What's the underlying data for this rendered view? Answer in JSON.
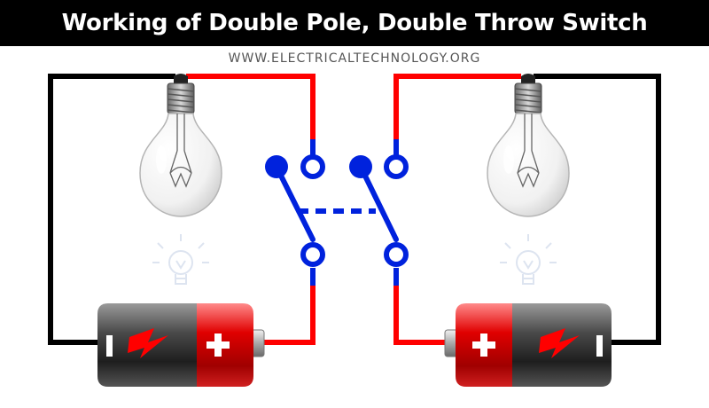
{
  "title": "Working of Double Pole, Double Throw Switch",
  "website": "WWW.ELECTRICALTECHNOLOGY.ORG",
  "colors": {
    "background": "#ffffff",
    "title_bar": "#000000",
    "title_text": "#ffffff",
    "wire_positive": "#ff0000",
    "wire_negative": "#000000",
    "switch": "#0022dd",
    "battery_body_dark": "#333333",
    "battery_body_red": "#e10000"
  },
  "icons": [
    "bulb-icon-left",
    "bulb-icon-right",
    "idea-icon-left",
    "idea-icon-right",
    "battery-left",
    "battery-right",
    "dpdt-switch"
  ]
}
